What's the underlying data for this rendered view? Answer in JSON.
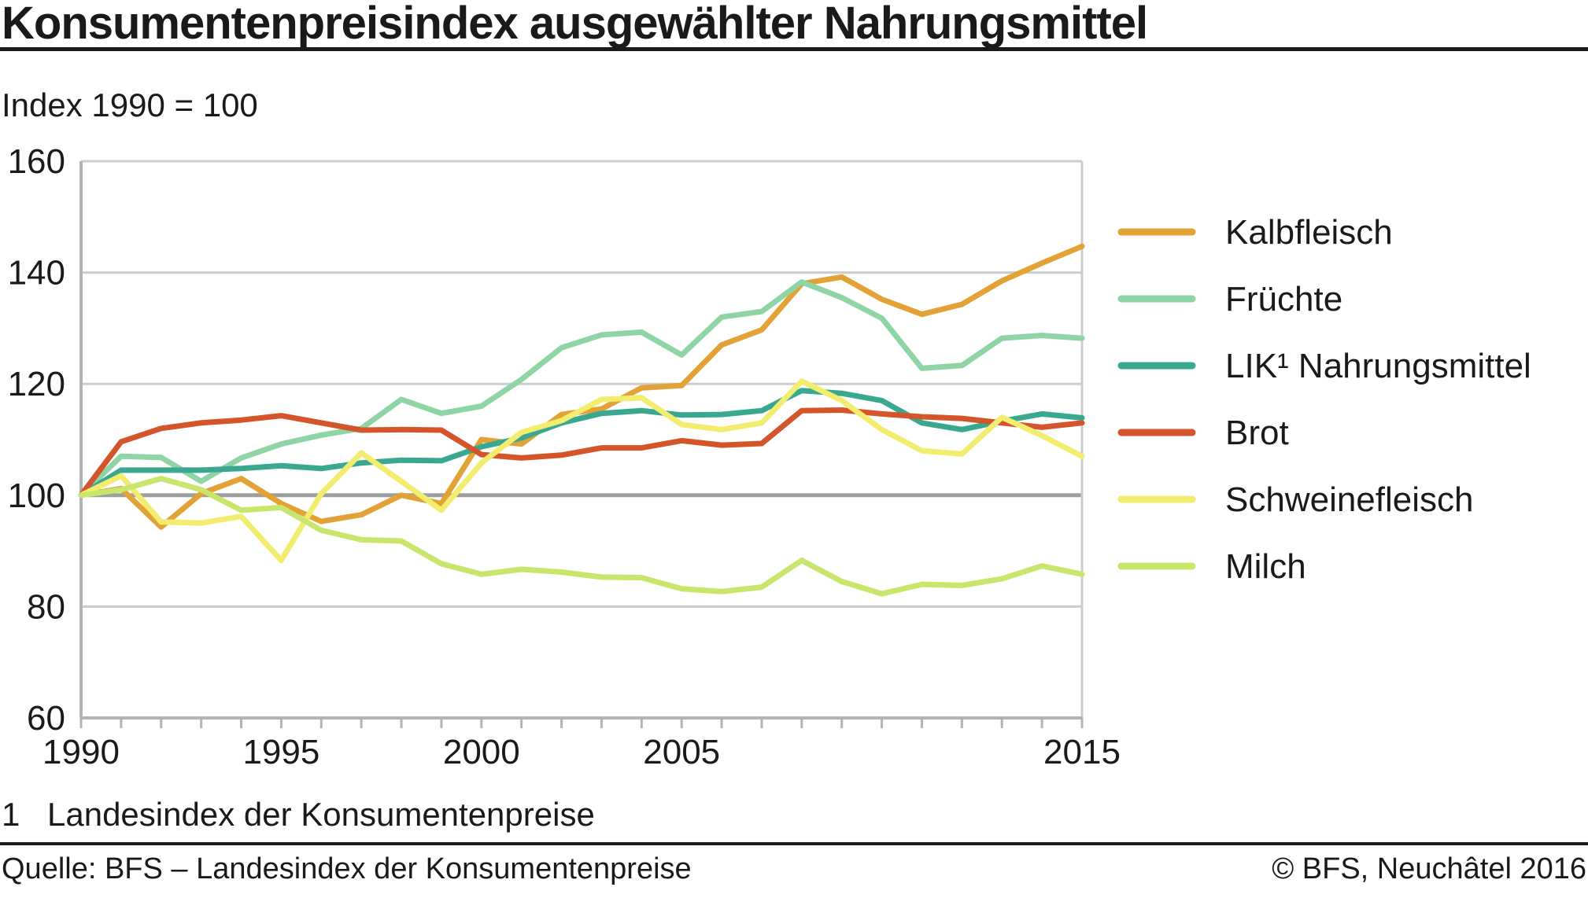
{
  "header": {
    "title": "Konsumentenpreisindex ausgewählter Nahrungsmittel",
    "subtitle": "Index 1990 = 100"
  },
  "footer": {
    "footnote_number": "1",
    "footnote_text": "Landesindex der Konsumentenpreise",
    "source": "Quelle: BFS – Landesindex der Konsumentenpreise",
    "copyright": "© BFS, Neuchâtel 2016"
  },
  "chart_data": {
    "type": "line",
    "title": "Konsumentenpreisindex ausgewählter Nahrungsmittel",
    "xlabel": "",
    "ylabel": "Index 1990 = 100",
    "xlim": [
      1990,
      2015
    ],
    "ylim": [
      60,
      160
    ],
    "yticks": [
      60,
      80,
      100,
      120,
      140,
      160
    ],
    "xtick_labels": [
      1990,
      1995,
      2000,
      2005,
      2015
    ],
    "grid": true,
    "reference_line": 100,
    "legend_position": "right",
    "x": [
      1990,
      1991,
      1992,
      1993,
      1994,
      1995,
      1996,
      1997,
      1998,
      1999,
      2000,
      2001,
      2002,
      2003,
      2004,
      2005,
      2006,
      2007,
      2008,
      2009,
      2010,
      2011,
      2012,
      2013,
      2014,
      2015
    ],
    "series": [
      {
        "name": "Kalbfleisch",
        "color": "#e3a235",
        "values": [
          100,
          101.2,
          94.3,
          100.3,
          103,
          98.5,
          95.3,
          96.5,
          100,
          98.5,
          110,
          109.2,
          114.5,
          115.5,
          119.3,
          119.7,
          127,
          129.7,
          138,
          139.2,
          135.2,
          132.5,
          134.3,
          138.5,
          141.7,
          144.7
        ]
      },
      {
        "name": "Früchte",
        "color": "#8fd4a5",
        "values": [
          100,
          107,
          106.8,
          102.5,
          106.7,
          109.2,
          110.8,
          112,
          117.2,
          114.7,
          116,
          120.8,
          126.5,
          128.8,
          129.3,
          125.2,
          132,
          133,
          138.3,
          135.5,
          131.8,
          122.8,
          123.3,
          128.2,
          128.7,
          128.2
        ]
      },
      {
        "name": "LIK¹ Nahrungsmittel",
        "color": "#3aa890",
        "values": [
          100,
          104.5,
          104.5,
          104.5,
          104.8,
          105.3,
          104.8,
          105.8,
          106.3,
          106.2,
          108.7,
          110.3,
          113,
          114.7,
          115.2,
          114.4,
          114.5,
          115.2,
          118.8,
          118.3,
          117,
          113,
          111.8,
          113.3,
          114.6,
          113.9
        ]
      },
      {
        "name": "Brot",
        "color": "#d4542b",
        "values": [
          100,
          109.6,
          112,
          113,
          113.5,
          114.3,
          113,
          111.7,
          111.8,
          111.7,
          107.3,
          106.7,
          107.2,
          108.5,
          108.5,
          109.8,
          109,
          109.3,
          115.2,
          115.3,
          114.6,
          114.1,
          113.8,
          113,
          112.2,
          113
        ]
      },
      {
        "name": "Schweinefleisch",
        "color": "#f2ed6e",
        "values": [
          100,
          103.5,
          95.2,
          95,
          96.2,
          88.3,
          100.3,
          107.6,
          102.5,
          97.3,
          105.8,
          111.3,
          113.4,
          117.2,
          117.5,
          112.7,
          111.8,
          113,
          120.5,
          117,
          111.8,
          108,
          107.4,
          114,
          110.7,
          107
        ]
      },
      {
        "name": "Milch",
        "color": "#c9e56b",
        "values": [
          100,
          101,
          103,
          101,
          97.3,
          97.8,
          93.7,
          92,
          91.8,
          87.7,
          85.8,
          86.7,
          86.2,
          85.3,
          85.2,
          83.2,
          82.7,
          83.5,
          88.3,
          84.5,
          82.3,
          84,
          83.8,
          85,
          87.3,
          85.8
        ]
      }
    ]
  }
}
